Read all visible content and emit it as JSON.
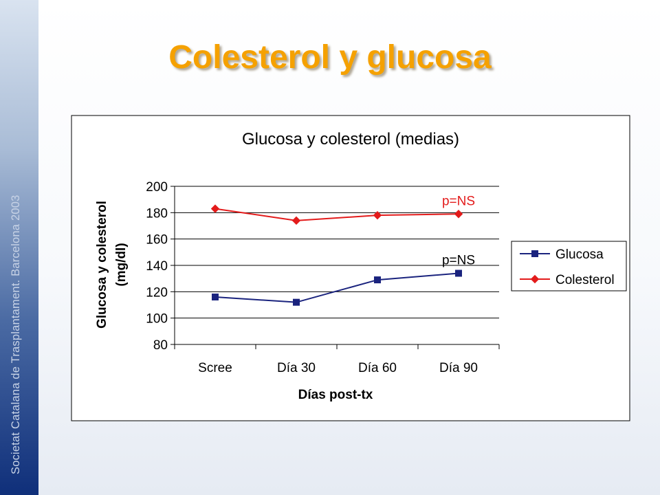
{
  "slide": {
    "title": "Colesterol y glucosa",
    "side_text": "Societat Catalana de Trasplantament. Barcelona 2003"
  },
  "colors": {
    "title": "#f5a100",
    "glucosa": "#1a237e",
    "colesterol": "#e31b1b",
    "annotation": "#e31b1b"
  },
  "chart_data": {
    "type": "line",
    "title": "Glucosa y colesterol (medias)",
    "xlabel": "Días post-tx",
    "ylabel": "Glucosa y colesterol (mg/dl)",
    "ylabel_lines": [
      "Glucosa y colesterol",
      "(mg/dl)"
    ],
    "categories": [
      "Scree",
      "Día 30",
      "Día 60",
      "Día 90"
    ],
    "ylim": [
      80,
      200
    ],
    "yticks": [
      80,
      100,
      120,
      140,
      160,
      180,
      200
    ],
    "grid": true,
    "legend_position": "right",
    "series": [
      {
        "name": "Glucosa",
        "values": [
          116,
          112,
          129,
          134
        ],
        "marker": "square"
      },
      {
        "name": "Colesterol",
        "values": [
          183,
          174,
          178,
          179
        ],
        "marker": "diamond"
      }
    ],
    "annotations": [
      {
        "text": "p=NS",
        "series": "Colesterol"
      },
      {
        "text": "p=NS",
        "series": "Glucosa"
      }
    ]
  }
}
